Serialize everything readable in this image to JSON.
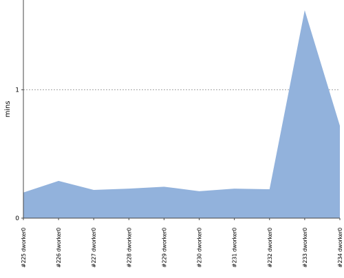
{
  "chart_data": {
    "type": "area",
    "ylabel": "mins",
    "categories": [
      "#225 dworker0",
      "#226 dworker0",
      "#227 dworker0",
      "#228 dworker0",
      "#229 dworker0",
      "#230 dworker0",
      "#231 dworker0",
      "#232 dworker0",
      "#233 dworker0",
      "#234 dworker0"
    ],
    "values": [
      0.2,
      0.29,
      0.22,
      0.23,
      0.245,
      0.21,
      0.23,
      0.225,
      1.62,
      0.72
    ],
    "ylim": [
      0,
      1.7
    ],
    "yticks": [
      0,
      1
    ],
    "grid": "dashed line at y=1",
    "fill_color": "#92b2dc",
    "axis_color": "#444444",
    "grid_color": "#888888",
    "text_color": "#000000"
  }
}
